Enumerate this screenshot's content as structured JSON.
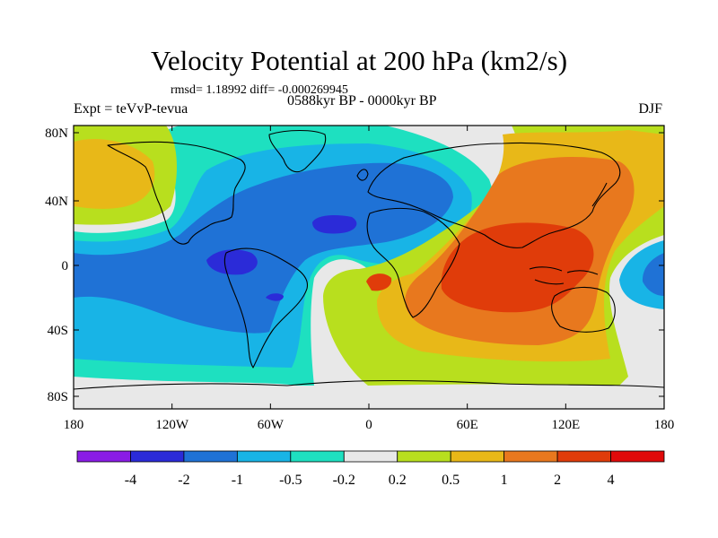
{
  "title": "Velocity Potential at 200 hPa (km2/s)",
  "stats_line": "rmsd= 1.18992 diff= -0.000269945",
  "left_label": "Expt = teVvP-tevua",
  "center_label": "0588kyr BP - 0000kyr BP",
  "right_label": "DJF",
  "y_ticks": [
    "80N",
    "40N",
    "0",
    "40S",
    "80S"
  ],
  "x_ticks": [
    "180",
    "120W",
    "60W",
    "0",
    "60E",
    "120E",
    "180"
  ],
  "colorbar": {
    "labels": [
      "-4",
      "-2",
      "-1",
      "-0.5",
      "-0.2",
      "0.2",
      "0.5",
      "1",
      "2",
      "4"
    ],
    "colors": [
      "#8a1ce6",
      "#2b2bd8",
      "#1f72d6",
      "#18b4e6",
      "#1ee0c0",
      "#e8e8e8",
      "#b8df1e",
      "#e8b818",
      "#e8781e",
      "#e03c0a",
      "#e00a0a"
    ]
  },
  "map_colors": {
    "ocean_bg": "#e8e8e8",
    "neg_weak": "#1ee0c0",
    "neg_mid": "#18b4e6",
    "neg_strong": "#1f72d6",
    "neg_max": "#2b2bd8",
    "pos_weak": "#b8df1e",
    "pos_mid": "#e8b818",
    "pos_strong": "#e8781e",
    "pos_max": "#e03c0a"
  }
}
